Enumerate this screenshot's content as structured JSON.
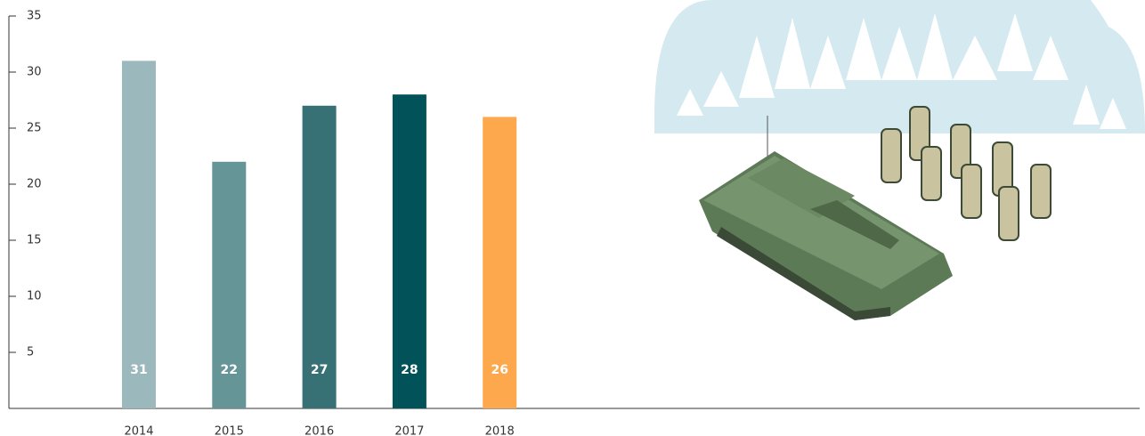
{
  "chart_data": {
    "type": "bar",
    "categories": [
      "2014",
      "2015",
      "2016",
      "2017",
      "2018"
    ],
    "values": [
      31,
      22,
      27,
      28,
      26
    ],
    "colors": [
      "#9bb8bc",
      "#669598",
      "#387175",
      "#02525a",
      "#fda84d"
    ],
    "ylim": [
      0,
      35
    ],
    "yticks": [
      5,
      10,
      15,
      20,
      25,
      30,
      35
    ]
  }
}
